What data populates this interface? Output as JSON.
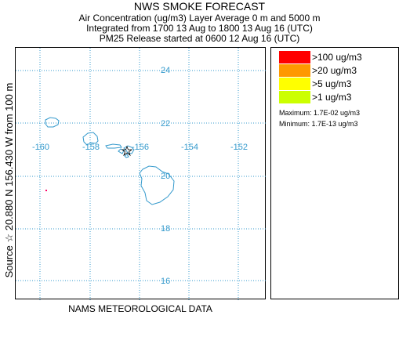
{
  "header": {
    "title": "NWS SMOKE FORECAST",
    "line2": "Air Concentration (ug/m3) Layer Average    0 m and  5000 m",
    "line3": "Integrated from 1700 13 Aug to 1800 13 Aug 16 (UTC)",
    "line4": "PM25 Release started at 0600 12 Aug 16 (UTC)"
  },
  "side_label": "Source ☆  20.880  N 156.430  W    from  100 m",
  "bottom_label": "NAMS METEOROLOGICAL DATA",
  "map": {
    "lat_labels": [
      "24",
      "22",
      "20",
      "18",
      "16"
    ],
    "lon_labels": [
      "-160",
      "-158",
      "-156",
      "-154",
      "-152"
    ],
    "grid_color": "#3399cc",
    "coast_color": "#3399cc",
    "smoke_dot_color": "#ff0066"
  },
  "legend": {
    "items": [
      {
        "label": ">100 ug/m3",
        "color": "#ff0000"
      },
      {
        "label": ">20 ug/m3",
        "color": "#ff9900"
      },
      {
        "label": ">5 ug/m3",
        "color": "#ffff00"
      },
      {
        "label": ">1 ug/m3",
        "color": "#ccff00"
      }
    ],
    "maximum": "Maximum: 1.7E-02 ug/m3",
    "minimum": "Minimum: 1.7E-13 ug/m3"
  }
}
